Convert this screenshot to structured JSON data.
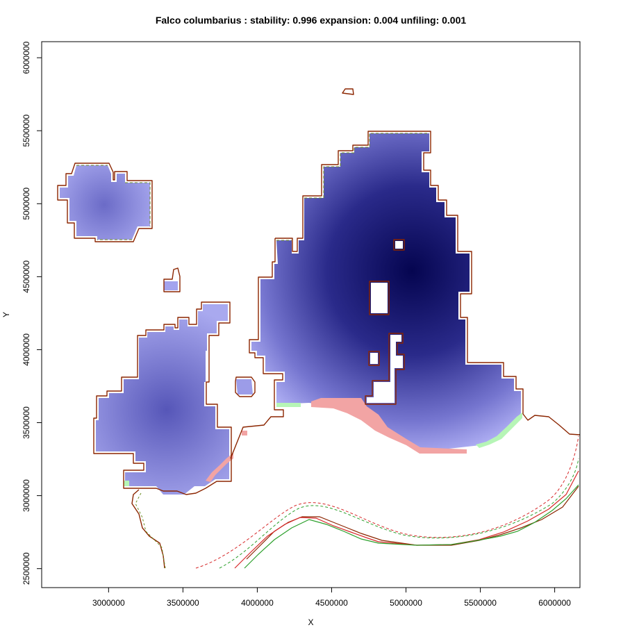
{
  "chart_data": {
    "type": "heatmap",
    "title": "Falco columbarius : stability: 0.996 expansion: 0.004 unfiling: 0.001",
    "xlabel": "X",
    "ylabel": "Y",
    "xlim": [
      2550000,
      6170000
    ],
    "ylim": [
      2370000,
      6110000
    ],
    "x_ticks": [
      3000000,
      3500000,
      4000000,
      4500000,
      5000000,
      5500000,
      6000000
    ],
    "y_ticks": [
      2500000,
      3000000,
      3500000,
      4000000,
      4500000,
      5000000,
      5500000,
      6000000
    ],
    "x_tick_labels": [
      "3000000",
      "3500000",
      "4000000",
      "4500000",
      "5000000",
      "5500000",
      "6000000"
    ],
    "y_tick_labels": [
      "2500000",
      "3000000",
      "3500000",
      "4000000",
      "4500000",
      "5000000",
      "5500000",
      "6000000"
    ],
    "grid": false,
    "legend": "none",
    "colors": {
      "stable_low": "#a9a9f2",
      "stable_high": "#050550",
      "unfilling": "#f2a4a4",
      "expansion": "#b6f5b6",
      "outline_a": "#8b2500",
      "outline_b": "#6b8e23",
      "dashed_red": "#d62728",
      "dashed_green": "#2ca02c"
    },
    "summary": {
      "stability": 0.996,
      "expansion": 0.004,
      "unfiling": 0.001
    }
  }
}
